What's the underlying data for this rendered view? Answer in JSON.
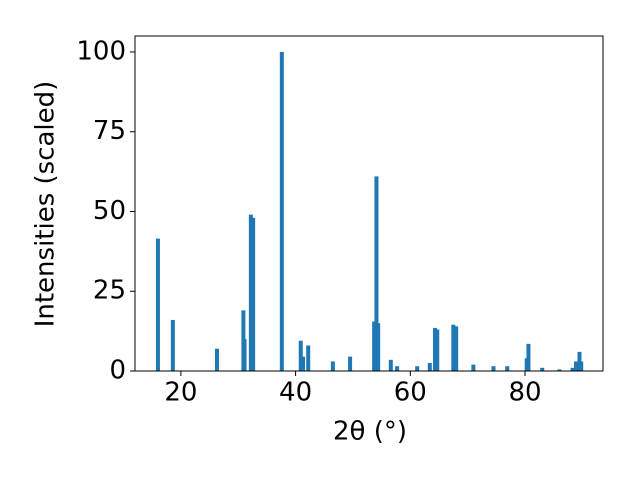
{
  "chart_data": {
    "type": "bar",
    "xlabel": "2θ (°)",
    "ylabel": "Intensities (scaled)",
    "x": [
      16.0,
      18.6,
      26.3,
      30.9,
      31.1,
      32.2,
      32.6,
      37.6,
      40.9,
      41.3,
      42.2,
      46.5,
      49.5,
      53.7,
      54.1,
      54.4,
      56.6,
      57.7,
      61.2,
      63.4,
      64.3,
      64.7,
      67.5,
      68.0,
      71.0,
      74.5,
      76.9,
      80.3,
      80.6,
      83.0,
      86.0,
      88.3,
      88.9,
      89.5,
      89.8
    ],
    "values": [
      41.5,
      16,
      7,
      19,
      10,
      49,
      48,
      100,
      9.5,
      4.5,
      8,
      3,
      4.5,
      15.5,
      61,
      15,
      3.5,
      1.5,
      1.5,
      2.5,
      13.5,
      13,
      14.5,
      14,
      2,
      1.5,
      1.5,
      4,
      8.5,
      1,
      0.5,
      1,
      3,
      6,
      3
    ],
    "color": "#1f77b4",
    "xlim": [
      12.0,
      93.6
    ],
    "ylim": [
      0,
      105
    ],
    "xticks": [
      20,
      40,
      60,
      80
    ],
    "yticks": [
      0,
      25,
      50,
      75,
      100
    ]
  }
}
